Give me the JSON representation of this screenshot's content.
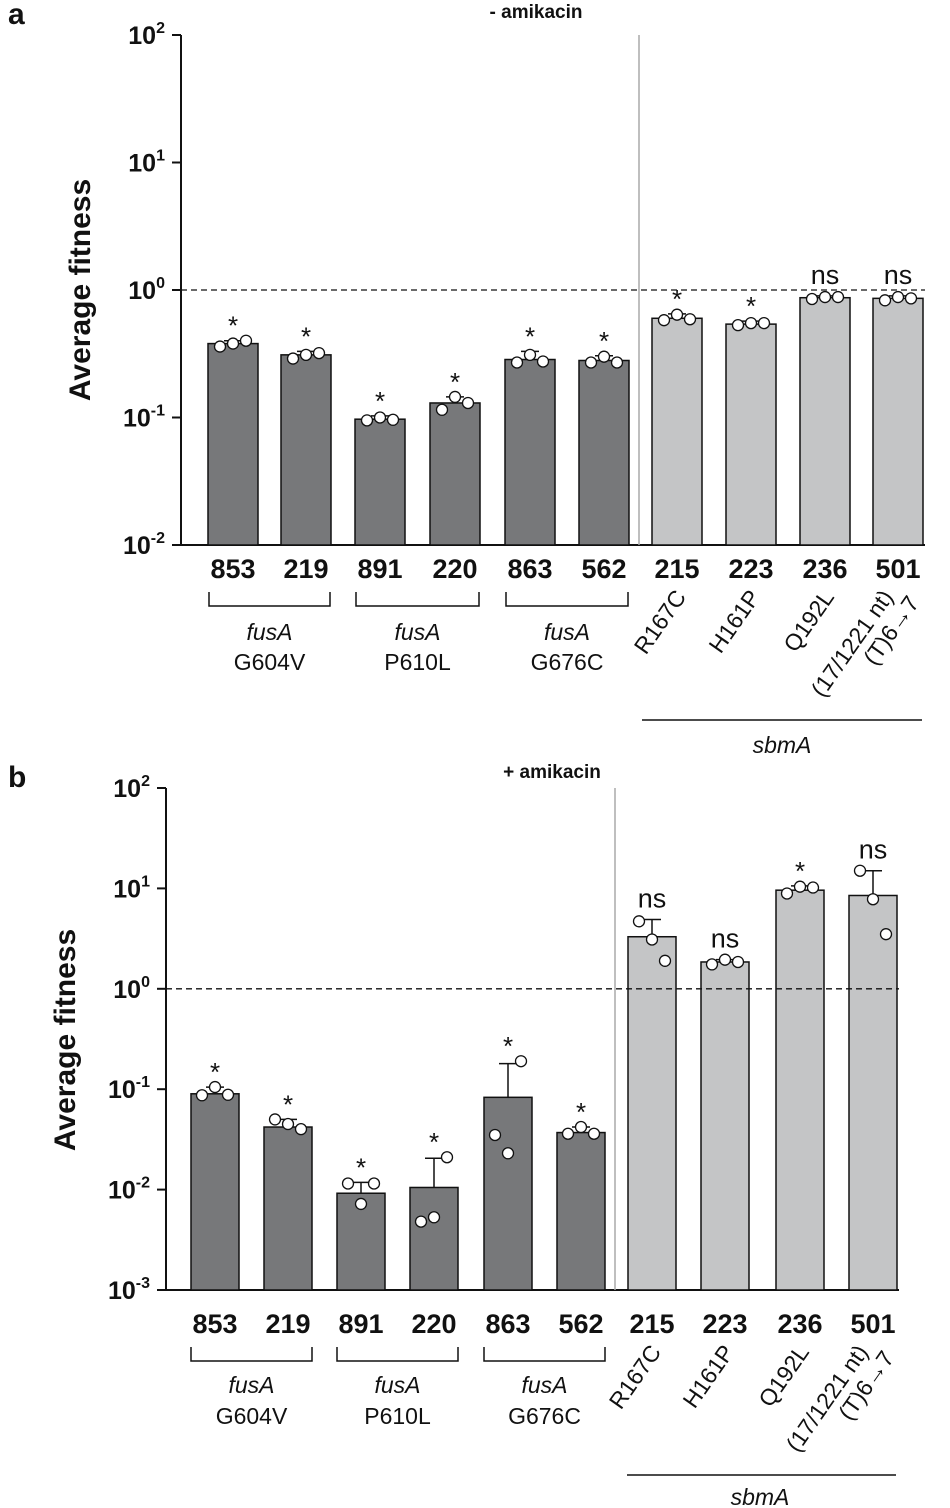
{
  "chart_data": [
    {
      "panel_label": "a",
      "type": "bar",
      "title": "- amikacin",
      "ylabel": "Average fitness",
      "yscale": "log",
      "ylim": [
        0.01,
        100
      ],
      "yticks": [
        {
          "base": "10",
          "exp": "2"
        },
        {
          "base": "10",
          "exp": "1"
        },
        {
          "base": "10",
          "exp": "0"
        },
        {
          "base": "10",
          "exp": "-1"
        },
        {
          "base": "10",
          "exp": "-2"
        }
      ],
      "ytick_values": [
        100,
        10,
        1,
        0.1,
        0.01
      ],
      "reference_line": 1,
      "categories": [
        "853",
        "219",
        "891",
        "220",
        "863",
        "562",
        "215",
        "223",
        "236",
        "501"
      ],
      "values": [
        0.38,
        0.31,
        0.097,
        0.13,
        0.285,
        0.28,
        0.6,
        0.54,
        0.87,
        0.86
      ],
      "error_upper": [
        0.4,
        0.33,
        0.103,
        0.145,
        0.33,
        0.305,
        0.65,
        0.57,
        0.9,
        0.9
      ],
      "points": [
        [
          0.36,
          0.38,
          0.4
        ],
        [
          0.29,
          0.31,
          0.32
        ],
        [
          0.095,
          0.1,
          0.096
        ],
        [
          0.115,
          0.145,
          0.13
        ],
        [
          0.27,
          0.31,
          0.275
        ],
        [
          0.27,
          0.3,
          0.27
        ],
        [
          0.58,
          0.64,
          0.59
        ],
        [
          0.53,
          0.55,
          0.55
        ],
        [
          0.85,
          0.88,
          0.88
        ],
        [
          0.83,
          0.88,
          0.86
        ]
      ],
      "colors": [
        "#77787a",
        "#77787a",
        "#77787a",
        "#77787a",
        "#77787a",
        "#77787a",
        "#c4c5c6",
        "#c4c5c6",
        "#c4c5c6",
        "#c4c5c6"
      ],
      "significance": [
        "*",
        "*",
        "*",
        "*",
        "*",
        "*",
        "*",
        "*",
        "ns",
        "ns"
      ],
      "groups": [
        {
          "gene": "fusA",
          "mutation": "G604V"
        },
        {
          "gene": "fusA",
          "mutation": "P610L"
        },
        {
          "gene": "fusA",
          "mutation": "G676C"
        }
      ],
      "sbma_labels": [
        "R167C",
        "H161P",
        "Q192L",
        [
          "(17/1221 nt)",
          "(T)6→7"
        ]
      ],
      "sbma_gene": "sbmA"
    },
    {
      "panel_label": "b",
      "type": "bar",
      "title": "+ amikacin",
      "ylabel": "Average fitness",
      "yscale": "log",
      "ylim": [
        0.001,
        100
      ],
      "yticks": [
        {
          "base": "10",
          "exp": "2"
        },
        {
          "base": "10",
          "exp": "1"
        },
        {
          "base": "10",
          "exp": "0"
        },
        {
          "base": "10",
          "exp": "-1"
        },
        {
          "base": "10",
          "exp": "-2"
        },
        {
          "base": "10",
          "exp": "-3"
        }
      ],
      "ytick_values": [
        100,
        10,
        1,
        0.1,
        0.01,
        0.001
      ],
      "reference_line": 1,
      "categories": [
        "853",
        "219",
        "891",
        "220",
        "863",
        "562",
        "215",
        "223",
        "236",
        "501"
      ],
      "values": [
        0.09,
        0.042,
        0.0092,
        0.0105,
        0.083,
        0.037,
        3.3,
        1.85,
        9.6,
        8.5
      ],
      "error_upper": [
        0.105,
        0.05,
        0.0118,
        0.0205,
        0.18,
        0.042,
        4.9,
        1.95,
        10.6,
        15.0
      ],
      "points": [
        [
          0.087,
          0.105,
          0.088
        ],
        [
          0.05,
          0.045,
          0.04
        ],
        [
          0.0115,
          0.0072,
          0.0115
        ],
        [
          0.0048,
          0.0053,
          0.021
        ],
        [
          0.035,
          0.023,
          0.19
        ],
        [
          0.036,
          0.042,
          0.036
        ],
        [
          4.7,
          3.1,
          1.9
        ],
        [
          1.75,
          1.95,
          1.85
        ],
        [
          8.9,
          10.4,
          10.2
        ],
        [
          15.0,
          7.8,
          3.5
        ]
      ],
      "colors": [
        "#77787a",
        "#77787a",
        "#77787a",
        "#77787a",
        "#77787a",
        "#77787a",
        "#c4c5c6",
        "#c4c5c6",
        "#c4c5c6",
        "#c4c5c6"
      ],
      "significance": [
        "*",
        "*",
        "*",
        "*",
        "*",
        "*",
        "ns",
        "ns",
        "*",
        "ns"
      ],
      "groups": [
        {
          "gene": "fusA",
          "mutation": "G604V"
        },
        {
          "gene": "fusA",
          "mutation": "P610L"
        },
        {
          "gene": "fusA",
          "mutation": "G676C"
        }
      ],
      "sbma_labels": [
        "R167C",
        "H161P",
        "Q192L",
        [
          "(17/1221 nt)",
          "(T)6→7"
        ]
      ],
      "sbma_gene": "sbmA"
    }
  ]
}
